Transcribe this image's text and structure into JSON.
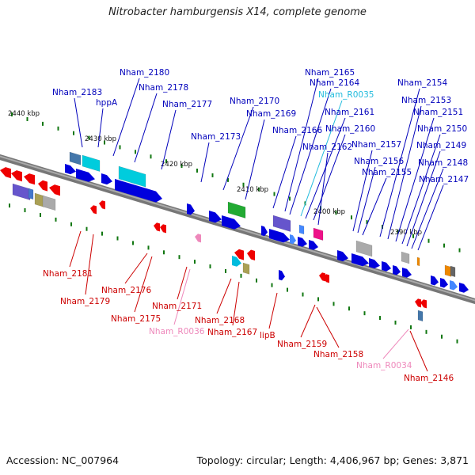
{
  "title": "Nitrobacter hamburgensis X14, complete genome",
  "footer": {
    "accession": "Accession: NC_007964",
    "summary": "Topology: circular; Length: 4,406,967 bp; Genes: 3,871"
  },
  "colors": {
    "backbone": "#8c8c8c",
    "gene_forward": "#0000dd",
    "gene_reverse": "#ee0000",
    "rna_forward": "#00bbdd",
    "rna_reverse": "#ee88bb",
    "tick": "#117711"
  },
  "scale_labels": [
    "2440 kbp",
    "2430 kbp",
    "2420 kbp",
    "2410 kbp",
    "2400 kbp",
    "2390 kbp"
  ],
  "labels_above": [
    {
      "text": "Nham_2183",
      "color": "#0000bb"
    },
    {
      "text": "hppA",
      "color": "#0000bb"
    },
    {
      "text": "Nham_2180",
      "color": "#0000bb"
    },
    {
      "text": "Nham_2178",
      "color": "#0000bb"
    },
    {
      "text": "Nham_2177",
      "color": "#0000bb"
    },
    {
      "text": "Nham_2173",
      "color": "#0000bb"
    },
    {
      "text": "Nham_2170",
      "color": "#0000bb"
    },
    {
      "text": "Nham_2169",
      "color": "#0000bb"
    },
    {
      "text": "Nham_2166",
      "color": "#0000bb"
    },
    {
      "text": "Nham_2165",
      "color": "#0000bb"
    },
    {
      "text": "Nham_2164",
      "color": "#0000bb"
    },
    {
      "text": "Nham_R0035",
      "color": "#22bbdd"
    },
    {
      "text": "Nham_2161",
      "color": "#0000bb"
    },
    {
      "text": "Nham_2160",
      "color": "#0000bb"
    },
    {
      "text": "Nham_2162",
      "color": "#0000bb"
    },
    {
      "text": "Nham_2157",
      "color": "#0000bb"
    },
    {
      "text": "Nham_2156",
      "color": "#0000bb"
    },
    {
      "text": "Nham_2155",
      "color": "#0000bb"
    },
    {
      "text": "Nham_2154",
      "color": "#0000bb"
    },
    {
      "text": "Nham_2153",
      "color": "#0000bb"
    },
    {
      "text": "Nham_2151",
      "color": "#0000bb"
    },
    {
      "text": "Nham_2150",
      "color": "#0000bb"
    },
    {
      "text": "Nham_2149",
      "color": "#0000bb"
    },
    {
      "text": "Nham_2148",
      "color": "#0000bb"
    },
    {
      "text": "Nham_2147",
      "color": "#0000bb"
    }
  ],
  "labels_below": [
    {
      "text": "Nham_2181",
      "color": "#cc0000"
    },
    {
      "text": "Nham_2179",
      "color": "#cc0000"
    },
    {
      "text": "Nham_2176",
      "color": "#cc0000"
    },
    {
      "text": "Nham_2175",
      "color": "#cc0000"
    },
    {
      "text": "Nham_2171",
      "color": "#cc0000"
    },
    {
      "text": "Nham_R0036",
      "color": "#ee88bb"
    },
    {
      "text": "Nham_2168",
      "color": "#cc0000"
    },
    {
      "text": "Nham_2167",
      "color": "#cc0000"
    },
    {
      "text": "lipB",
      "color": "#cc0000"
    },
    {
      "text": "Nham_2159",
      "color": "#cc0000"
    },
    {
      "text": "Nham_2158",
      "color": "#cc0000"
    },
    {
      "text": "Nham_R0034",
      "color": "#ee88bb"
    },
    {
      "text": "Nham_2146",
      "color": "#cc0000"
    }
  ]
}
